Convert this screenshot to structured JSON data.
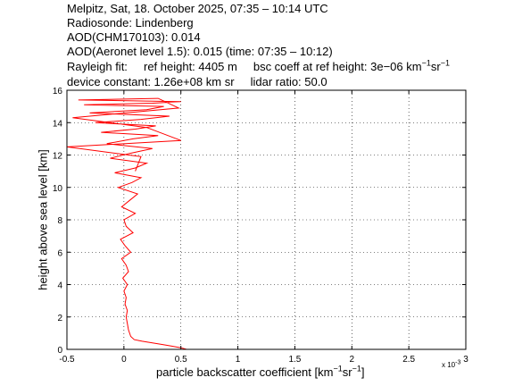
{
  "header": {
    "line1": "Melpitz, Sat, 18. October 2025, 07:35 – 10:14 UTC",
    "line2": "Radiosonde: Lindenberg",
    "line3": "AOD(CHM170103): 0.014",
    "line4": "AOD(Aeronet level 1.5): 0.015   (time: 07:35 – 10:12)",
    "rayleigh_label": "Rayleigh fit:",
    "ref_height": "ref height: 4405 m",
    "bsc_coeff_prefix": "bsc coeff at ref height: 3e−06 km",
    "device_constant": "device constant: 1.26e+08 km sr",
    "lidar_ratio": "lidar ratio: 50.0"
  },
  "axes": {
    "xlabel_prefix": "particle backscatter coefficient [km",
    "ylabel": "height above sea level [km]",
    "x_multiplier": "x 10",
    "x_multiplier_exp": "-3",
    "unit_exp": "−1",
    "sr_text": "sr"
  },
  "chart_data": {
    "type": "line",
    "xlim": [
      -0.5,
      3
    ],
    "ylim": [
      0,
      16
    ],
    "x_scale_note": "x 10^-3",
    "x_ticks": [
      "-0.5",
      "0",
      "0.5",
      "1",
      "1.5",
      "2",
      "2.5",
      "3"
    ],
    "y_ticks": [
      "0",
      "2",
      "4",
      "6",
      "8",
      "10",
      "12",
      "14",
      "16"
    ],
    "grid": true,
    "series": [
      {
        "color": "#ff0000",
        "x": [
          0.55,
          0.5,
          0.42,
          0.34,
          0.25,
          0.16,
          0.09,
          0.06,
          0.04,
          0.03,
          0.02,
          0.03,
          0.01,
          0.02,
          0.0,
          0.03,
          -0.01,
          0.04,
          0.02,
          -0.02,
          0.06,
          0.01,
          -0.03,
          0.08,
          0.02,
          0.0,
          0.1,
          -0.02,
          0.05,
          0.12,
          -0.05,
          0.07,
          0.15,
          -0.08,
          0.1,
          0.2,
          -0.12,
          0.05,
          0.25,
          -0.15,
          0.08,
          0.3,
          -0.2,
          0.1,
          0.28,
          -0.25,
          0.15,
          0.4,
          -0.3,
          0.2,
          0.35,
          -0.35,
          0.25,
          0.5,
          -0.4,
          0.3,
          0.48,
          -0.45,
          0.2,
          0.5,
          -0.5,
          0.15,
          0.1
        ],
        "y": [
          0.0,
          0.1,
          0.2,
          0.3,
          0.4,
          0.5,
          0.6,
          0.8,
          1.2,
          1.6,
          2.0,
          2.4,
          2.8,
          3.2,
          3.6,
          4.0,
          4.4,
          4.8,
          5.2,
          5.6,
          6.0,
          6.4,
          6.8,
          7.2,
          7.6,
          8.0,
          8.4,
          8.8,
          9.2,
          9.6,
          10.0,
          10.3,
          10.6,
          10.9,
          11.2,
          11.5,
          11.8,
          12.1,
          12.4,
          12.7,
          13.0,
          13.2,
          13.4,
          13.6,
          13.8,
          14.0,
          14.2,
          14.4,
          14.6,
          14.8,
          15.0,
          15.1,
          15.2,
          15.3,
          15.4,
          15.5,
          14.9,
          14.3,
          13.7,
          12.9,
          12.5,
          11.9,
          11.0
        ]
      }
    ]
  }
}
